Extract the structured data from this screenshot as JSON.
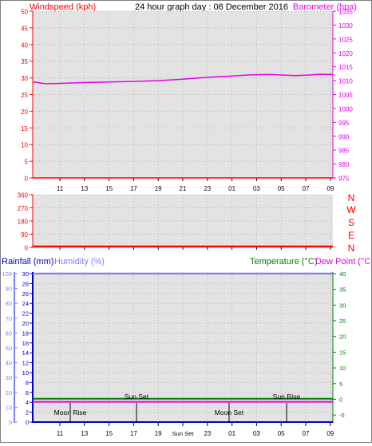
{
  "header": {
    "title": "24 hour graph day : 08 December 2016",
    "left_label": "Windspeed (kph)",
    "right_label": "Barometer (hpa)"
  },
  "wind_dir_panel": {
    "compass_labels": [
      "N",
      "W",
      "S",
      "E",
      "N"
    ]
  },
  "bottom_panel": {
    "rain_label": "Rainfall (mm)",
    "humidity_label": "Humidity (%)",
    "temp_label": "Temperature (°C)",
    "dew_label": "Dew Point (°C)"
  },
  "colors": {
    "windspeed": "#ff0000",
    "barometer": "#e600e6",
    "direction": "#ff0000",
    "rainfall": "#0000cc",
    "humidity": "#8080ff",
    "temperature": "#008000",
    "dew_point": "#e600e6",
    "panel_bg": "#e3e3e3",
    "grid": "#b0b0b0"
  },
  "chart_data": [
    {
      "type": "line",
      "x_tick_labels": [
        "11",
        "13",
        "15",
        "17",
        "19",
        "21",
        "23",
        "01",
        "03",
        "05",
        "07",
        "09"
      ],
      "xlim": [
        0,
        24
      ],
      "y_left": {
        "label": "Windspeed (kph)",
        "ticks": [
          0,
          5,
          10,
          15,
          20,
          25,
          30,
          35,
          40,
          45,
          50
        ],
        "lim": [
          0,
          50
        ]
      },
      "y_right": {
        "label": "Barometer (hpa)",
        "ticks": [
          975,
          980,
          985,
          990,
          995,
          1000,
          1005,
          1010,
          1015,
          1020,
          1025,
          1030,
          1035
        ],
        "lim": [
          975,
          1035
        ]
      },
      "series": [
        {
          "name": "Windspeed (kph)",
          "axis": "left",
          "x": [
            0,
            24
          ],
          "y": [
            0,
            0
          ]
        },
        {
          "name": "Barometer (hpa)",
          "axis": "right",
          "x": [
            0,
            1.0,
            2.0,
            4.0,
            6.0,
            8.0,
            10.0,
            12.0,
            14.0,
            16.0,
            17.5,
            19.0,
            21.0,
            22.0,
            23.0,
            24.0
          ],
          "y": [
            1009.6,
            1008.9,
            1009.0,
            1009.3,
            1009.5,
            1009.7,
            1010.0,
            1010.5,
            1011.2,
            1011.7,
            1012.1,
            1012.2,
            1011.8,
            1012.0,
            1012.3,
            1012.2
          ]
        }
      ]
    },
    {
      "type": "line",
      "x_tick_labels": [],
      "xlim": [
        0,
        24
      ],
      "y_left": {
        "label": "",
        "ticks": [
          0,
          90,
          180,
          270,
          360
        ],
        "lim": [
          0,
          360
        ]
      },
      "series": [
        {
          "name": "Wind direction",
          "axis": "left",
          "x": [
            0,
            24
          ],
          "y": [
            0,
            0
          ]
        }
      ]
    },
    {
      "type": "line",
      "x_tick_labels": [
        "11",
        "13",
        "15",
        "17",
        "19",
        "Sun Set",
        "23",
        "01",
        "03",
        "05",
        "07",
        "09"
      ],
      "xlim": [
        0,
        24
      ],
      "y_left_outer": {
        "label": "Humidity (%)",
        "ticks": [
          0,
          10,
          20,
          30,
          40,
          50,
          60,
          70,
          80,
          90,
          100
        ],
        "lim": [
          0,
          100
        ]
      },
      "y_left_inner": {
        "label": "Rainfall (mm)",
        "ticks": [
          0,
          2,
          4,
          6,
          8,
          10,
          12,
          14,
          16,
          18,
          20,
          22,
          24,
          26,
          28,
          30
        ],
        "lim": [
          0,
          30
        ]
      },
      "y_right": {
        "label": "Temperature (°C)",
        "ticks": [
          -5,
          0,
          5,
          10,
          15,
          20,
          25,
          30,
          35,
          40
        ],
        "lim": [
          -7.5,
          40
        ]
      },
      "annotations": [
        {
          "text": "Moon Rise",
          "x": 3.0
        },
        {
          "text": "Sun Set",
          "x": 8.3
        },
        {
          "text": "Moon Set",
          "x": 15.7
        },
        {
          "text": "Sun Rise",
          "x": 20.3
        }
      ],
      "series": [
        {
          "name": "Rainfall (mm)",
          "axis": "left_inner",
          "x": [
            0,
            24
          ],
          "y": [
            0,
            0
          ]
        },
        {
          "name": "Humidity (%)",
          "axis": "left_outer",
          "x": [
            0,
            24
          ],
          "y": [
            100,
            100
          ]
        },
        {
          "name": "Temperature (°C)",
          "axis": "right",
          "x": [
            0,
            24
          ],
          "y": [
            0.2,
            0.2
          ]
        },
        {
          "name": "Dew Point (°C)",
          "axis": "right",
          "x": [
            0,
            24
          ],
          "y": [
            -0.8,
            -0.8
          ]
        }
      ]
    }
  ]
}
